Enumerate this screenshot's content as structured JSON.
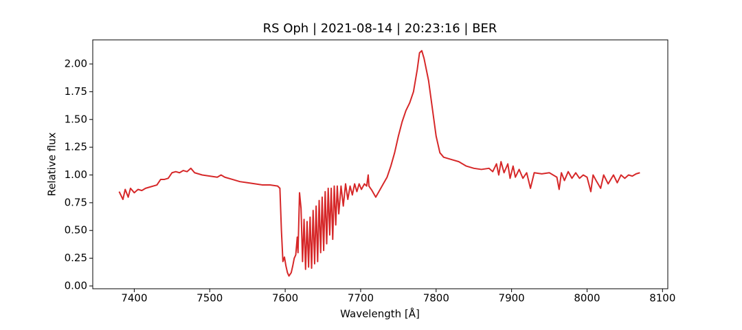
{
  "chart_data": {
    "type": "line",
    "title": "RS Oph | 2021-08-14 | 20:23:16 | BER",
    "x_label": "Wavelength [Å]",
    "y_label": "Relative flux",
    "xlim": [
      7345,
      8107
    ],
    "ylim": [
      -0.025,
      2.217
    ],
    "xticks": [
      7400,
      7500,
      7600,
      7700,
      7800,
      7900,
      8000,
      8100
    ],
    "yticks": [
      {
        "value": 0,
        "label": "0.00"
      },
      {
        "value": 0.25,
        "label": "0.25"
      },
      {
        "value": 0.5,
        "label": "0.50"
      },
      {
        "value": 0.75,
        "label": "0.75"
      },
      {
        "value": 1,
        "label": "1.00"
      },
      {
        "value": 1.25,
        "label": "1.25"
      },
      {
        "value": 1.5,
        "label": "1.50"
      },
      {
        "value": 1.75,
        "label": "1.75"
      },
      {
        "value": 2,
        "label": "2.00"
      }
    ],
    "series": [
      {
        "color": "#d62728",
        "x": [
          7380,
          7385,
          7388,
          7392,
          7395,
          7400,
          7405,
          7410,
          7415,
          7420,
          7430,
          7435,
          7440,
          7445,
          7450,
          7455,
          7460,
          7465,
          7470,
          7475,
          7480,
          7490,
          7500,
          7510,
          7515,
          7520,
          7530,
          7540,
          7550,
          7560,
          7570,
          7580,
          7590,
          7593,
          7595,
          7597,
          7599,
          7601,
          7603,
          7605,
          7608,
          7610,
          7612,
          7614,
          7616,
          7617,
          7619,
          7621,
          7623,
          7625,
          7627,
          7629,
          7631,
          7633,
          7635,
          7637,
          7639,
          7641,
          7643,
          7645,
          7647,
          7649,
          7651,
          7653,
          7655,
          7657,
          7659,
          7661,
          7663,
          7665,
          7667,
          7669,
          7671,
          7674,
          7677,
          7680,
          7683,
          7686,
          7689,
          7692,
          7695,
          7698,
          7701,
          7705,
          7708,
          7710,
          7711,
          7715,
          7720,
          7725,
          7730,
          7735,
          7740,
          7745,
          7750,
          7755,
          7760,
          7765,
          7770,
          7775,
          7778,
          7781,
          7784,
          7790,
          7795,
          7800,
          7805,
          7810,
          7820,
          7830,
          7840,
          7850,
          7860,
          7870,
          7875,
          7880,
          7883,
          7886,
          7890,
          7895,
          7898,
          7902,
          7905,
          7910,
          7915,
          7920,
          7925,
          7930,
          7940,
          7950,
          7960,
          7963,
          7966,
          7970,
          7975,
          7980,
          7985,
          7990,
          7995,
          8000,
          8005,
          8008,
          8012,
          8018,
          8022,
          8028,
          8035,
          8040,
          8045,
          8050,
          8055,
          8060,
          8065,
          8070
        ],
        "values": [
          0.85,
          0.78,
          0.87,
          0.8,
          0.88,
          0.84,
          0.87,
          0.86,
          0.88,
          0.89,
          0.91,
          0.96,
          0.96,
          0.97,
          1.02,
          1.03,
          1.02,
          1.04,
          1.03,
          1.06,
          1.02,
          1.0,
          0.99,
          0.98,
          1.0,
          0.98,
          0.96,
          0.94,
          0.93,
          0.92,
          0.91,
          0.91,
          0.9,
          0.88,
          0.5,
          0.22,
          0.26,
          0.18,
          0.12,
          0.09,
          0.12,
          0.18,
          0.25,
          0.28,
          0.44,
          0.3,
          0.84,
          0.7,
          0.22,
          0.6,
          0.15,
          0.58,
          0.17,
          0.62,
          0.16,
          0.68,
          0.2,
          0.72,
          0.22,
          0.77,
          0.3,
          0.8,
          0.32,
          0.85,
          0.38,
          0.88,
          0.46,
          0.88,
          0.42,
          0.9,
          0.55,
          0.9,
          0.65,
          0.9,
          0.72,
          0.92,
          0.78,
          0.9,
          0.82,
          0.92,
          0.85,
          0.92,
          0.87,
          0.92,
          0.9,
          1.0,
          0.9,
          0.86,
          0.8,
          0.86,
          0.92,
          0.98,
          1.08,
          1.2,
          1.35,
          1.48,
          1.58,
          1.65,
          1.75,
          1.95,
          2.1,
          2.12,
          2.05,
          1.85,
          1.6,
          1.35,
          1.2,
          1.16,
          1.14,
          1.12,
          1.08,
          1.06,
          1.05,
          1.06,
          1.03,
          1.1,
          1.0,
          1.12,
          1.02,
          1.1,
          0.97,
          1.08,
          0.98,
          1.05,
          0.97,
          1.02,
          0.88,
          1.02,
          1.01,
          1.02,
          0.98,
          0.87,
          1.02,
          0.95,
          1.03,
          0.97,
          1.02,
          0.97,
          1.0,
          0.98,
          0.85,
          1.0,
          0.95,
          0.88,
          1.0,
          0.92,
          1.0,
          0.93,
          1.0,
          0.97,
          1.0,
          0.99,
          1.01,
          1.02
        ]
      }
    ]
  }
}
